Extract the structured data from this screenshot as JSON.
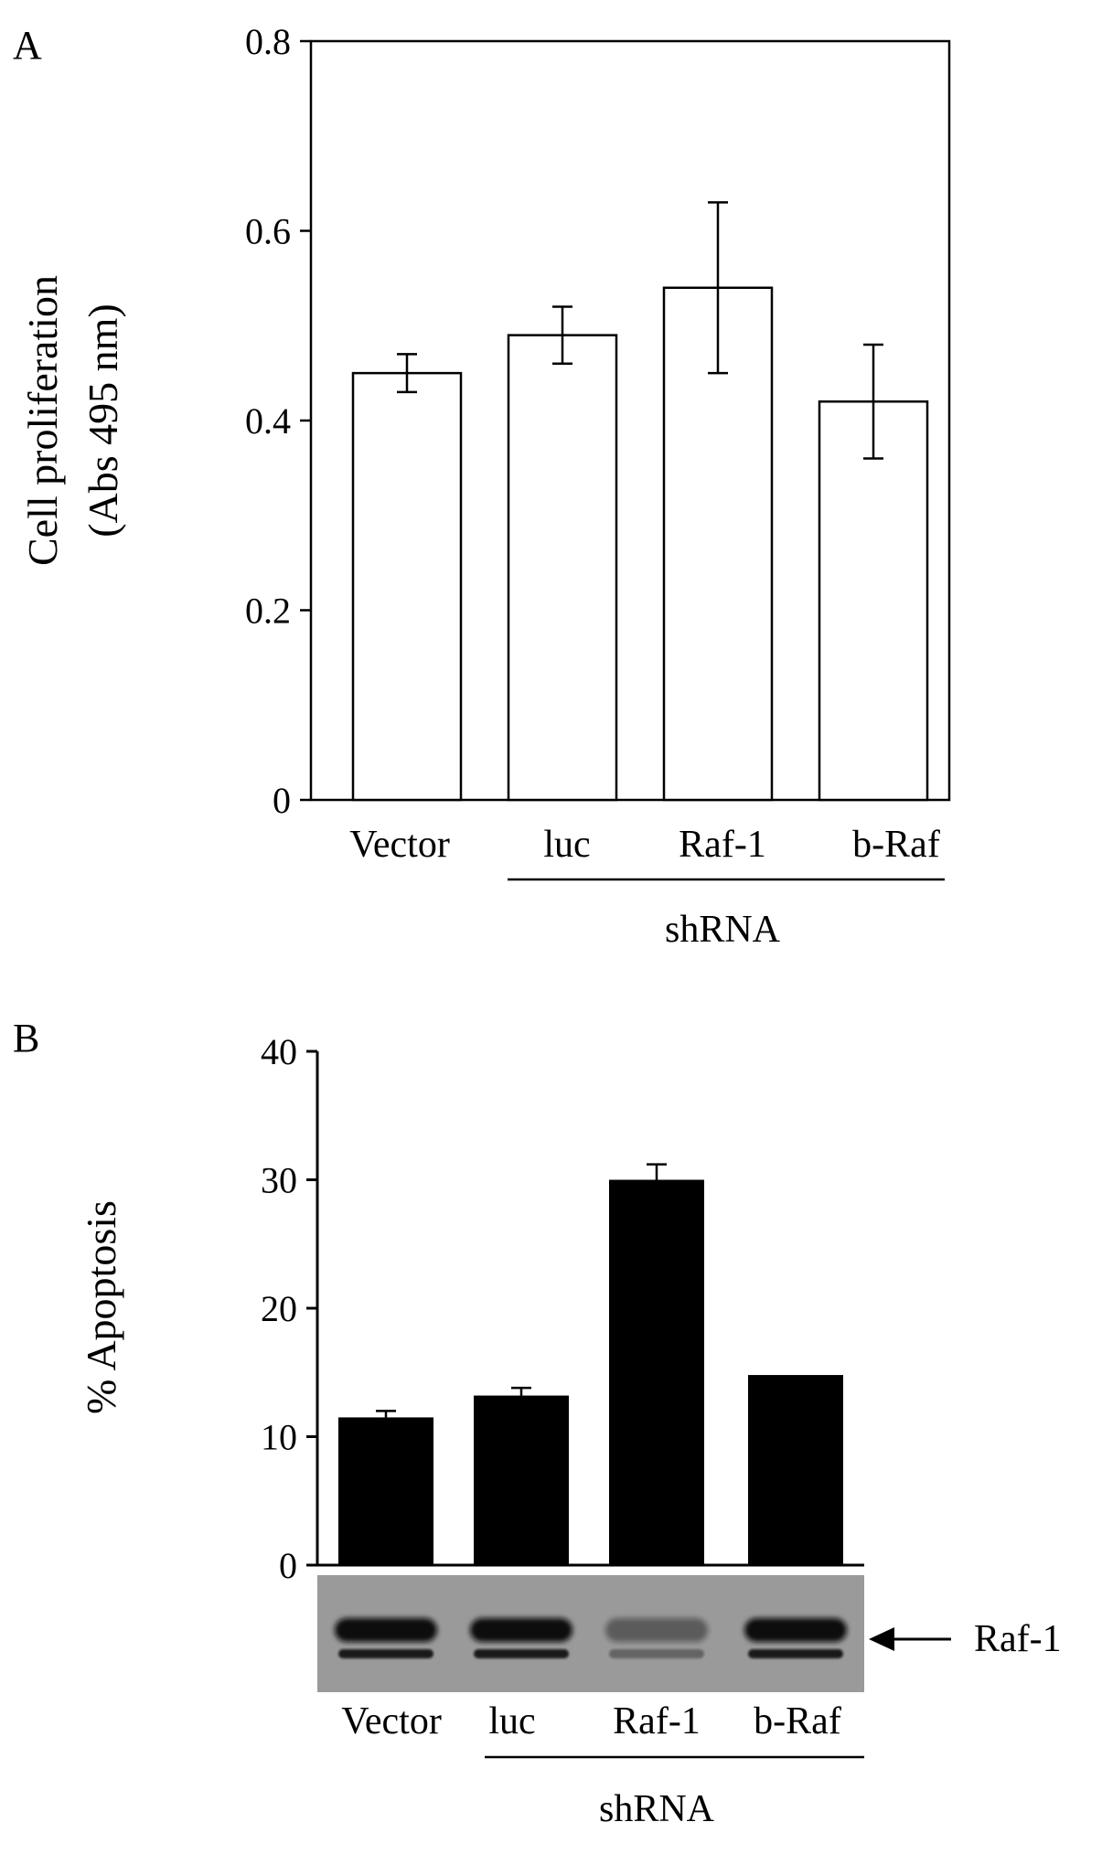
{
  "chart_data": [
    {
      "panel": "A",
      "type": "bar",
      "categories": [
        "Vector",
        "luc",
        "Raf-1",
        "b-Raf"
      ],
      "values": [
        0.45,
        0.49,
        0.54,
        0.42
      ],
      "error": [
        0.02,
        0.03,
        0.09,
        0.06
      ],
      "ylabel_line1": "Cell proliferation",
      "ylabel_line2": "(Abs 495 nm)",
      "ylim": [
        0,
        0.8
      ],
      "yticks": [
        "0",
        "0.2",
        "0.4",
        "0.6",
        "0.8"
      ],
      "group_label": "shRNA",
      "bar_fill": "#ffffff",
      "bar_stroke": "#000000",
      "frame": "box",
      "grid": false
    },
    {
      "panel": "B",
      "type": "bar",
      "categories": [
        "Vector",
        "luc",
        "Raf-1",
        "b-Raf"
      ],
      "values": [
        11.5,
        13.2,
        30.0,
        14.8
      ],
      "error": [
        0.5,
        0.6,
        1.2,
        0
      ],
      "ylabel": "% Apoptosis",
      "ylim": [
        0,
        40
      ],
      "yticks": [
        "0",
        "10",
        "20",
        "30",
        "40"
      ],
      "group_label": "shRNA",
      "bar_fill": "#000000",
      "frame": "axes",
      "grid": false,
      "blot": {
        "label": "Raf-1",
        "band_intensity": [
          1.0,
          1.0,
          0.25,
          1.0
        ],
        "background": "#9a9a9a"
      }
    }
  ]
}
